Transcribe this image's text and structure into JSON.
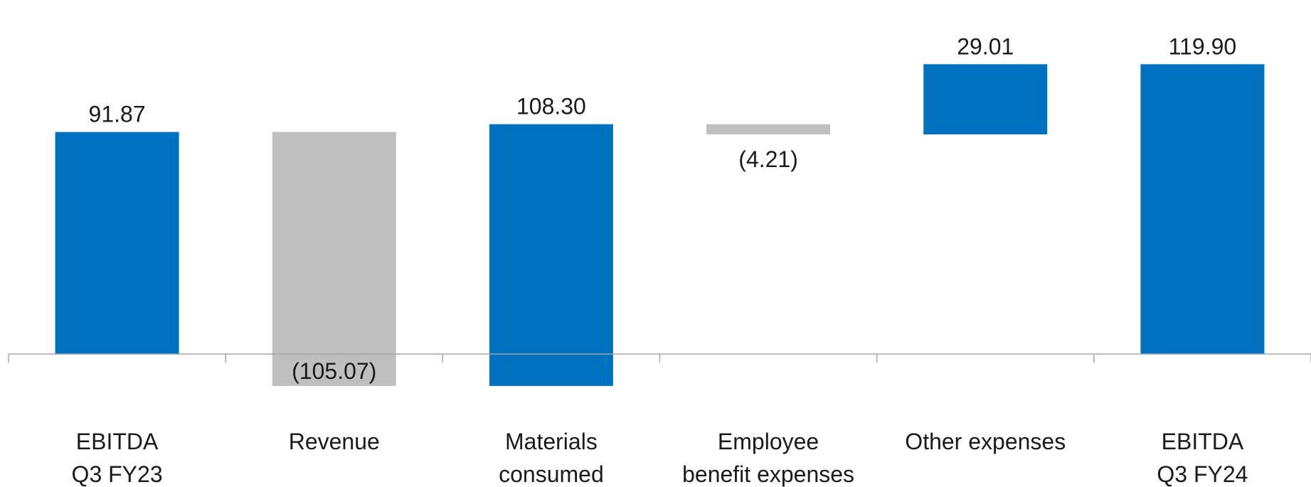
{
  "chart_data": {
    "type": "bar",
    "subtype": "waterfall",
    "title": "",
    "xlabel": "",
    "ylabel": "",
    "categories": [
      [
        "EBITDA",
        "Q3 FY23"
      ],
      [
        "Revenue"
      ],
      [
        "Materials",
        "consumed"
      ],
      [
        "Employee",
        "benefit expenses"
      ],
      [
        "Other expenses"
      ],
      [
        "EBITDA",
        "Q3 FY24"
      ]
    ],
    "steps": [
      {
        "kind": "total",
        "value": 91.87,
        "label": "91.87",
        "color": "#0070C0"
      },
      {
        "kind": "delta",
        "value": -105.07,
        "label": "(105.07)",
        "color": "#BFBFBF"
      },
      {
        "kind": "delta",
        "value": 108.3,
        "label": "108.30",
        "color": "#0070C0"
      },
      {
        "kind": "delta",
        "value": -4.21,
        "label": "(4.21)",
        "color": "#BFBFBF"
      },
      {
        "kind": "delta",
        "value": 29.01,
        "label": "29.01",
        "color": "#0070C0"
      },
      {
        "kind": "total",
        "value": 119.9,
        "label": "119.90",
        "color": "#0070C0"
      }
    ],
    "ylim": [
      -20,
      125
    ],
    "gridlines": false,
    "legend": "none"
  }
}
